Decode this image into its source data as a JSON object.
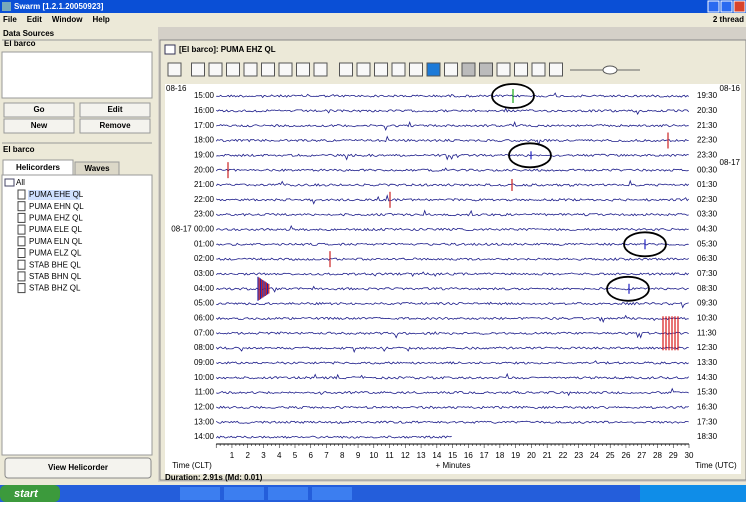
{
  "window": {
    "title": "Swarm [1.2.1.20050923]",
    "menu": [
      "File",
      "Edit",
      "Window",
      "Help"
    ],
    "status_right": "2 thread"
  },
  "sidebar": {
    "data_sources_header": "Data Sources",
    "source_item": "El barco",
    "buttons": [
      "Go",
      "Edit",
      "New",
      "Remove"
    ],
    "panel_header": "El barco",
    "tabs": [
      "Helicorders",
      "Waves"
    ],
    "tree_root": "All",
    "tree_items": [
      "PUMA EHE QL",
      "PUMA EHN QL",
      "PUMA EHZ QL",
      "PUMA ELE QL",
      "PUMA ELN QL",
      "PUMA ELZ QL",
      "STAB BHE QL",
      "STAB BHN QL",
      "STAB BHZ QL"
    ],
    "view_button": "View Helicorder"
  },
  "helicorder": {
    "title": "[El barco]: PUMA EHZ QL",
    "left_date": "08-16",
    "left_times": [
      "15:00",
      "16:00",
      "17:00",
      "18:00",
      "19:00",
      "20:00",
      "21:00",
      "22:00",
      "23:00",
      "08-17 00:00",
      "01:00",
      "02:00",
      "03:00",
      "04:00",
      "05:00",
      "06:00",
      "07:00",
      "08:00",
      "09:00",
      "10:00",
      "11:00",
      "12:00",
      "13:00",
      "14:00"
    ],
    "right_dates": [
      "08-16",
      "08-17"
    ],
    "right_times": [
      "19:30",
      "20:30",
      "21:30",
      "22:30",
      "23:30",
      "00:30",
      "01:30",
      "02:30",
      "03:30",
      "04:30",
      "05:30",
      "06:30",
      "07:30",
      "08:30",
      "09:30",
      "10:30",
      "11:30",
      "12:30",
      "13:30",
      "14:30",
      "15:30",
      "16:30",
      "17:30",
      "18:30"
    ],
    "x_ticks": [
      1,
      2,
      3,
      4,
      5,
      6,
      7,
      8,
      9,
      10,
      11,
      12,
      13,
      14,
      15,
      16,
      17,
      18,
      19,
      20,
      21,
      22,
      23,
      24,
      25,
      26,
      27,
      28,
      29,
      30
    ],
    "x_left_label": "Time (CLT)",
    "x_center_label": "+ Minutes",
    "x_right_label": "Time (UTC)"
  },
  "status": "Duration: 2.91s (Md: 0.01)",
  "taskbar": {
    "start": "start"
  }
}
